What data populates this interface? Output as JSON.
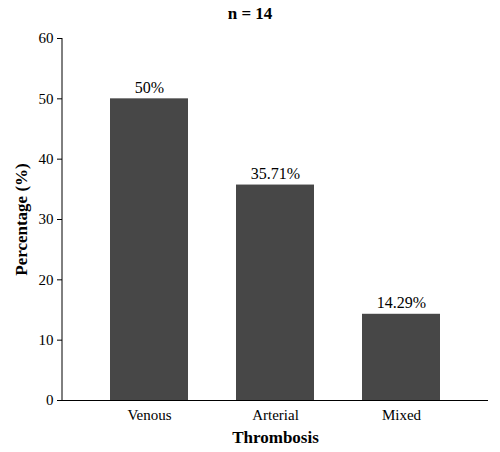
{
  "chart_data": {
    "type": "bar",
    "title": "n = 14",
    "x_label": "Thrombosis",
    "y_label": "Percentage (%)",
    "categories": [
      "Venous",
      "Arterial",
      "Mixed"
    ],
    "values": [
      50,
      35.71,
      14.29
    ],
    "value_labels": [
      "50%",
      "35.71%",
      "14.29%"
    ],
    "data_labels": true,
    "color": "#474747",
    "ylim": [
      0,
      60
    ],
    "yticks": [
      0,
      10,
      20,
      30,
      40,
      50,
      60
    ],
    "grid": false
  }
}
